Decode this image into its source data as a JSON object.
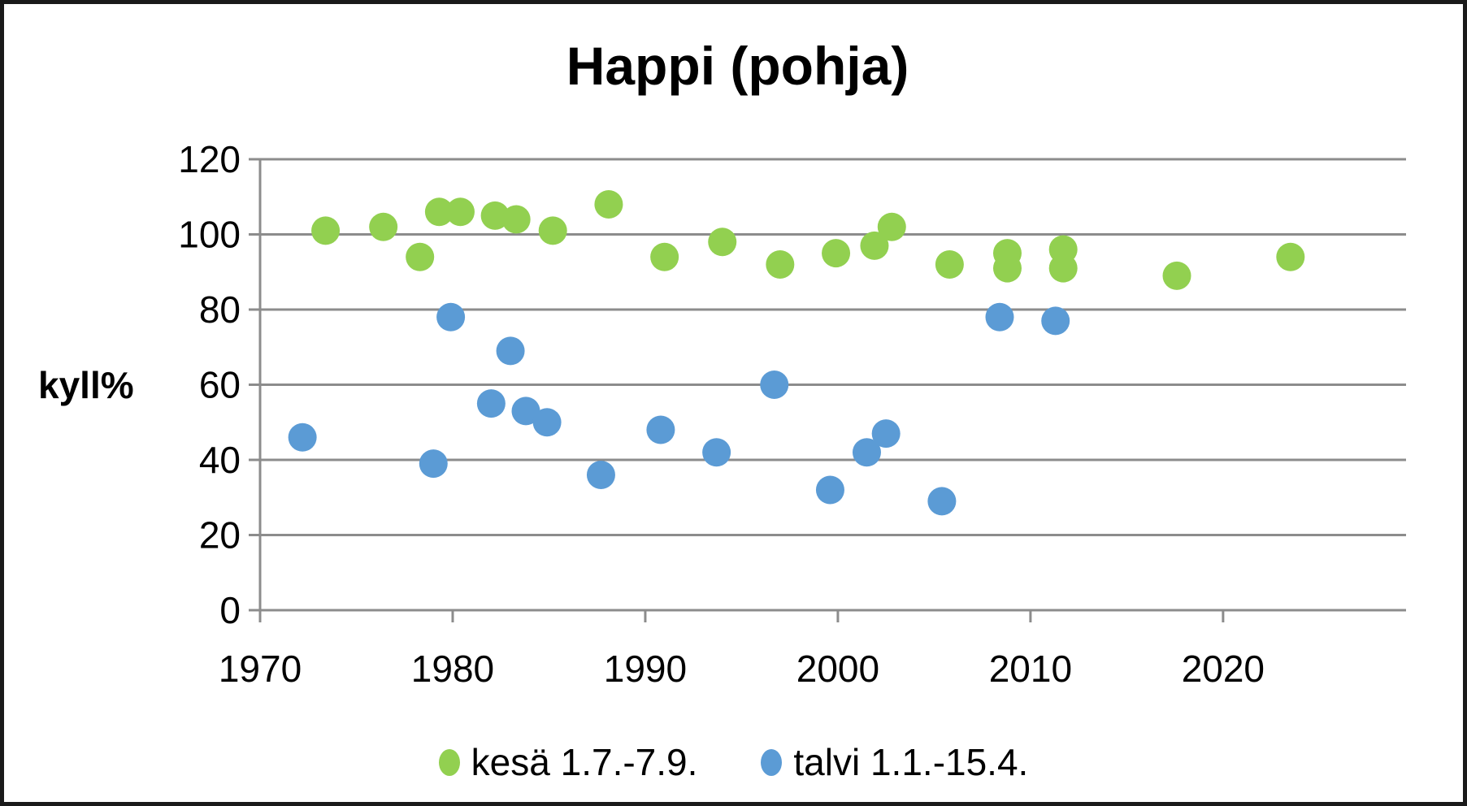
{
  "chart_data": {
    "type": "scatter",
    "title": "Happi (pohja)",
    "xlabel": "",
    "ylabel": "kyll%",
    "xlim": [
      1970,
      2029.5
    ],
    "ylim": [
      0,
      120
    ],
    "x_ticks": [
      1970,
      1980,
      1990,
      2000,
      2010,
      2020
    ],
    "y_ticks": [
      0,
      20,
      40,
      60,
      80,
      100,
      120
    ],
    "grid": "horizontal-only",
    "legend_position": "bottom",
    "colors": {
      "background": "#FFFFFF",
      "border": "#1A1A1A",
      "grid": "#8C8C8C",
      "axis": "#8C8C8C",
      "text": "#000000",
      "summer": "#92D050",
      "winter": "#5B9BD5"
    },
    "series": [
      {
        "name": "kesä 1.7.-7.9.",
        "color": "#92D050",
        "points": [
          [
            1973.4,
            101
          ],
          [
            1976.4,
            102
          ],
          [
            1978.3,
            94
          ],
          [
            1979.3,
            106
          ],
          [
            1980.4,
            106
          ],
          [
            1982.2,
            105
          ],
          [
            1983.3,
            104
          ],
          [
            1985.2,
            101
          ],
          [
            1988.1,
            108
          ],
          [
            1991.0,
            94
          ],
          [
            1994.0,
            98
          ],
          [
            1997.0,
            92
          ],
          [
            1999.9,
            95
          ],
          [
            2001.9,
            97
          ],
          [
            2002.8,
            102
          ],
          [
            2005.8,
            92
          ],
          [
            2008.8,
            95
          ],
          [
            2008.8,
            91
          ],
          [
            2011.7,
            96
          ],
          [
            2011.7,
            91
          ],
          [
            2017.6,
            89
          ],
          [
            2023.5,
            94
          ]
        ]
      },
      {
        "name": "talvi 1.1.-15.4.",
        "color": "#5B9BD5",
        "points": [
          [
            1972.2,
            46
          ],
          [
            1979.0,
            39
          ],
          [
            1979.9,
            78
          ],
          [
            1982.0,
            55
          ],
          [
            1983.0,
            69
          ],
          [
            1983.8,
            53
          ],
          [
            1984.9,
            50
          ],
          [
            1987.7,
            36
          ],
          [
            1990.8,
            48
          ],
          [
            1993.7,
            42
          ],
          [
            1996.7,
            60
          ],
          [
            1999.6,
            32
          ],
          [
            2001.5,
            42
          ],
          [
            2002.5,
            47
          ],
          [
            2005.4,
            29
          ],
          [
            2008.4,
            78
          ],
          [
            2011.3,
            77
          ]
        ]
      }
    ]
  }
}
